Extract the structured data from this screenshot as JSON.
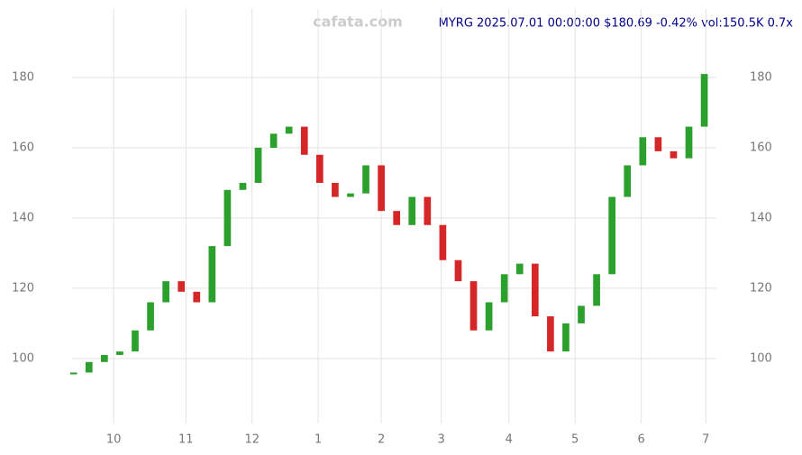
{
  "chart_data": {
    "type": "candlestick",
    "title": "MYRG 2025.07.01 00:00:00 $180.69 -0.42% vol:150.5K 0.7x",
    "watermark": "cafata.com",
    "values": [
      96,
      99,
      101,
      102,
      108,
      116,
      122,
      119,
      116,
      132,
      148,
      150,
      160,
      164,
      166,
      158,
      150,
      146,
      147,
      155,
      142,
      138,
      146,
      138,
      128,
      122,
      108,
      116,
      124,
      127,
      112,
      102,
      110,
      115,
      124,
      146,
      155,
      163,
      159,
      157,
      166,
      181
    ],
    "up_color": "#2ca02c",
    "down_color": "#d62728",
    "xlim": [
      -0.1,
      41.2
    ],
    "xticks": [
      {
        "value": 2.6,
        "label": "10"
      },
      {
        "value": 7.3,
        "label": "11"
      },
      {
        "value": 11.6,
        "label": "12"
      },
      {
        "value": 15.9,
        "label": "1"
      },
      {
        "value": 20.0,
        "label": "2"
      },
      {
        "value": 23.9,
        "label": "3"
      },
      {
        "value": 28.3,
        "label": "4"
      },
      {
        "value": 32.6,
        "label": "5"
      },
      {
        "value": 36.9,
        "label": "6"
      },
      {
        "value": 41.1,
        "label": "7"
      }
    ],
    "ylim": [
      81.5,
      199.5
    ],
    "yticks": [
      100,
      120,
      140,
      160,
      180
    ],
    "grid": true
  }
}
